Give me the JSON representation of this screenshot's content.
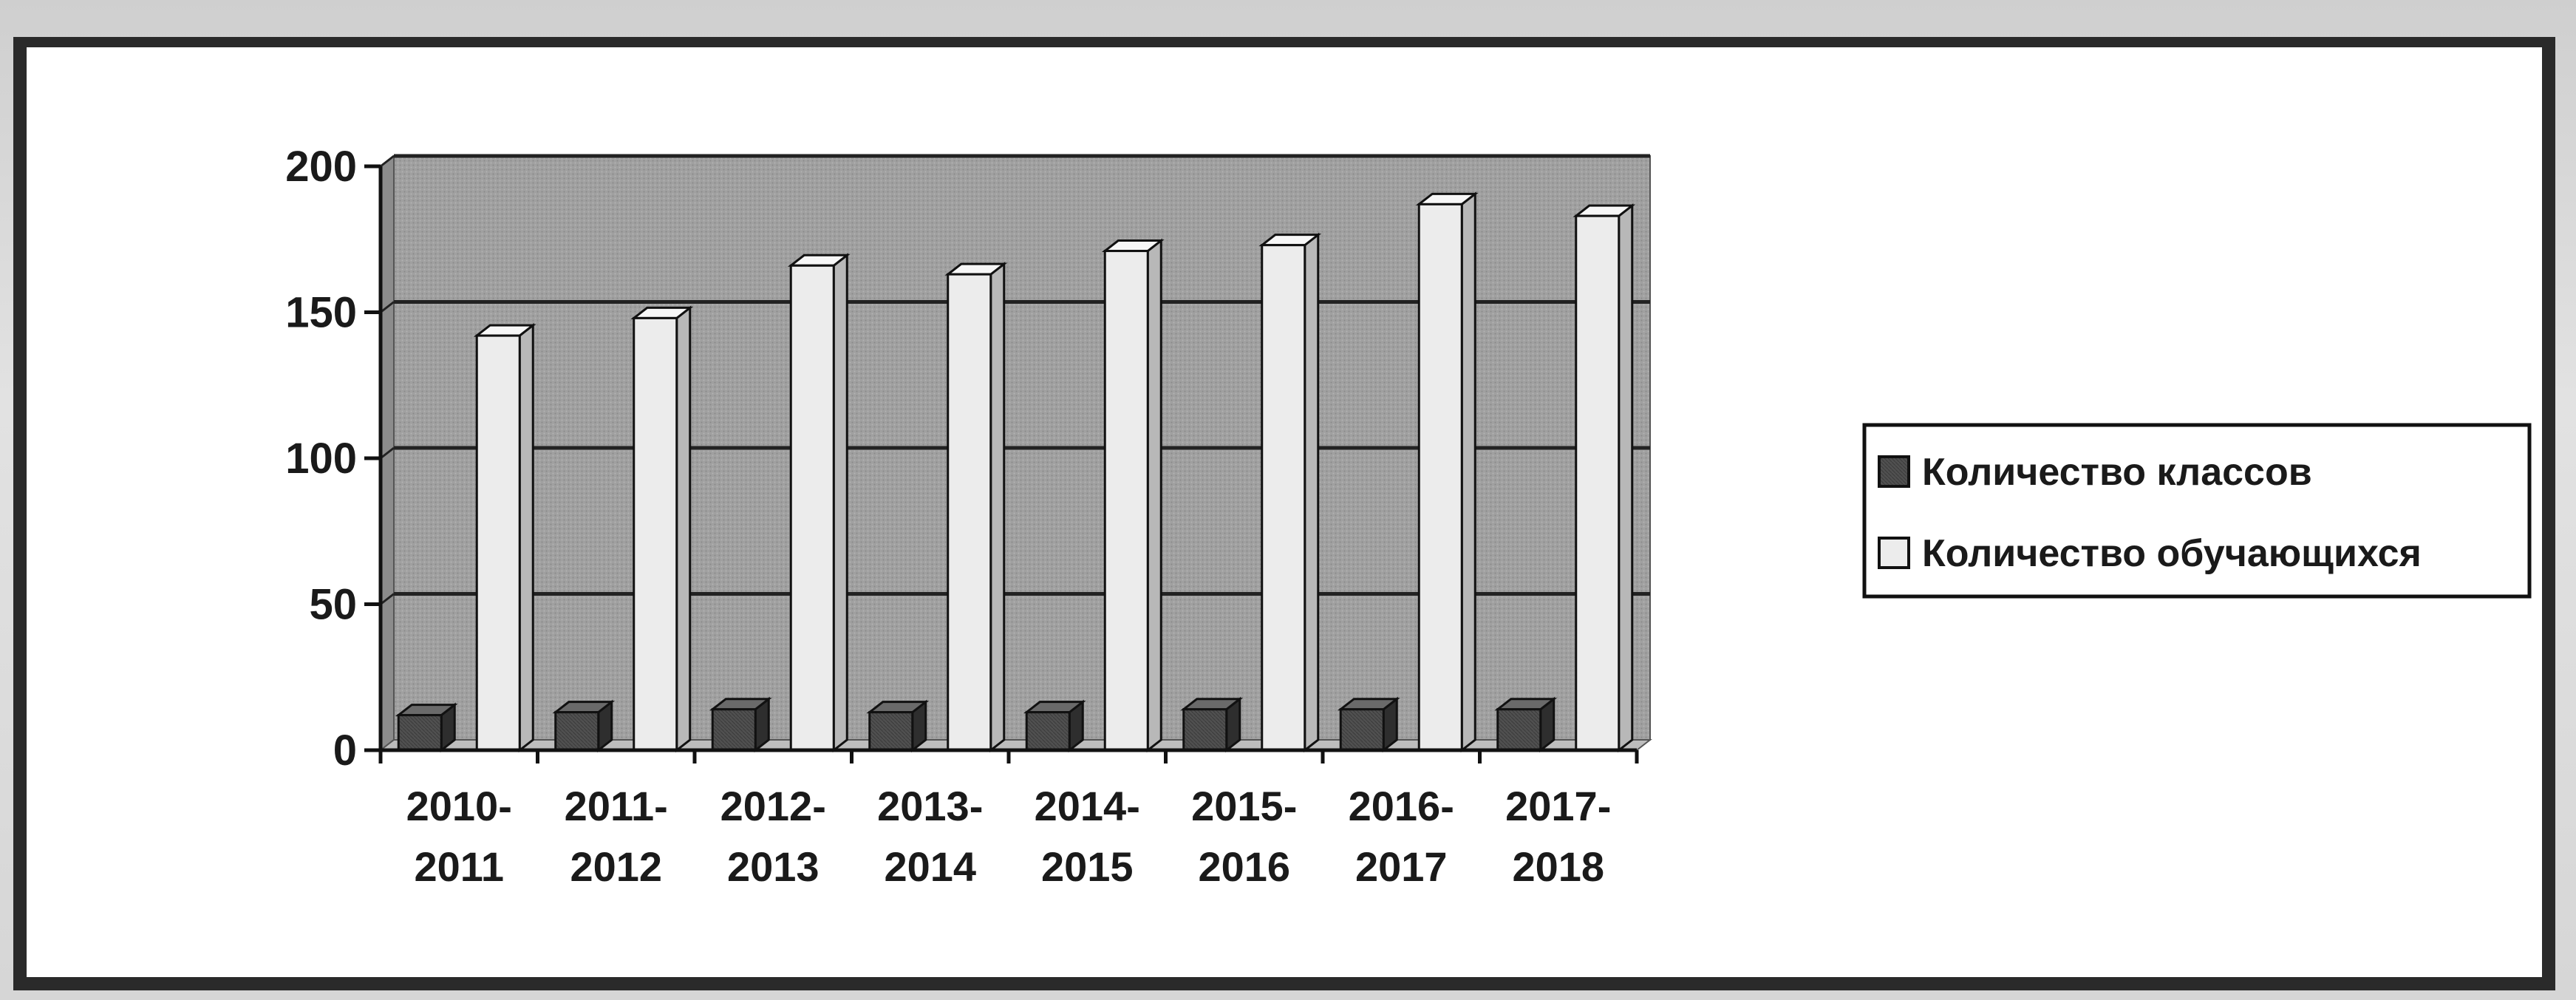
{
  "chart_data": {
    "type": "bar",
    "style": "3d-clustered-column",
    "categories": [
      "2010-2011",
      "2011-2012",
      "2012-2013",
      "2013-2014",
      "2014-2015",
      "2015-2016",
      "2016-2017",
      "2017-2018"
    ],
    "category_lines": [
      [
        "2010-",
        "2011"
      ],
      [
        "2011-",
        "2012"
      ],
      [
        "2012-",
        "2013"
      ],
      [
        "2013-",
        "2014"
      ],
      [
        "2014-",
        "2015"
      ],
      [
        "2015-",
        "2016"
      ],
      [
        "2016-",
        "2017"
      ],
      [
        "2017-",
        "2018"
      ]
    ],
    "series": [
      {
        "name": "Количество классов",
        "values": [
          12,
          13,
          14,
          13,
          13,
          14,
          14,
          14
        ],
        "color": "#4a4a4a"
      },
      {
        "name": "Количество обучающихся",
        "values": [
          142,
          148,
          166,
          163,
          171,
          173,
          187,
          183
        ],
        "color": "#ececec"
      }
    ],
    "yticks": [
      0,
      50,
      100,
      150,
      200
    ],
    "ylim": [
      0,
      200
    ],
    "grid": true,
    "legend_position": "right",
    "title": "",
    "xlabel": "",
    "ylabel": "",
    "wall_color": "#9a9a9a"
  }
}
